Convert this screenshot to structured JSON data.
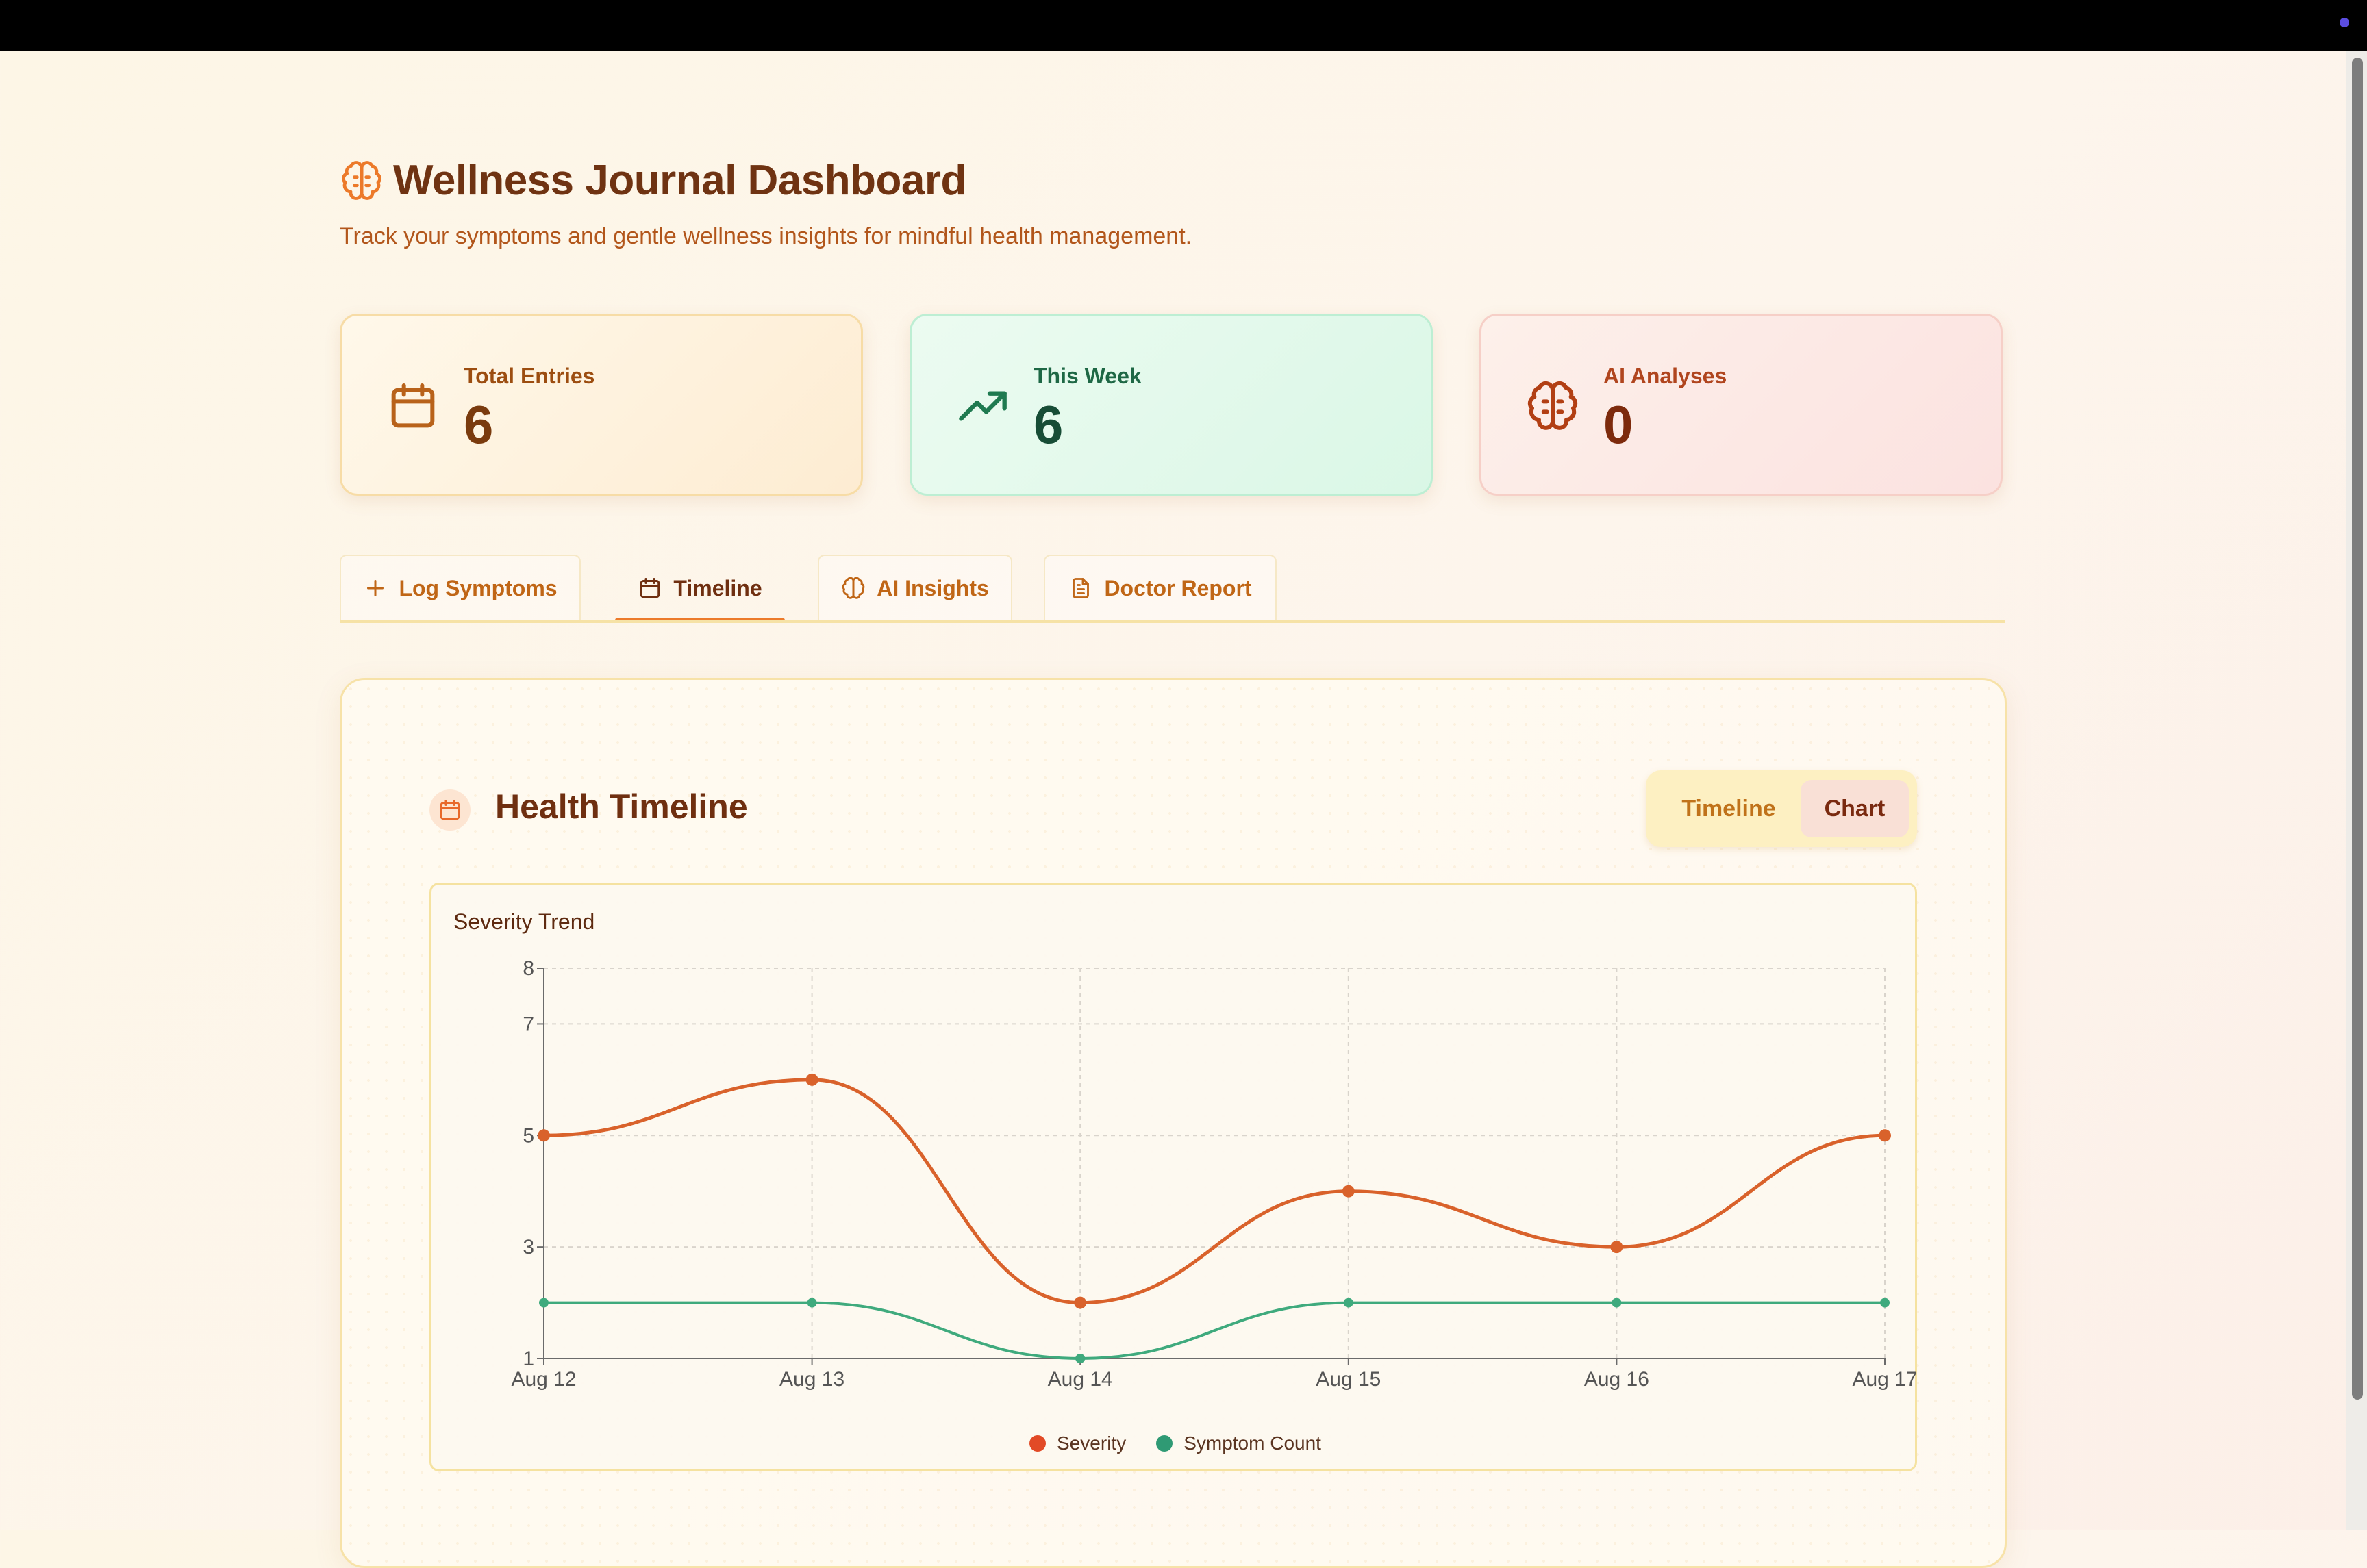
{
  "header": {
    "title": "Wellness Journal Dashboard",
    "subtitle": "Track your symptoms and gentle wellness insights for mindful health management."
  },
  "stats": [
    {
      "label": "Total Entries",
      "value": "6",
      "icon": "calendar-icon"
    },
    {
      "label": "This Week",
      "value": "6",
      "icon": "trending-up-icon"
    },
    {
      "label": "AI Analyses",
      "value": "0",
      "icon": "brain-icon"
    }
  ],
  "tabs": [
    {
      "label": "Log Symptoms",
      "icon": "plus-icon",
      "active": false
    },
    {
      "label": "Timeline",
      "icon": "calendar-icon",
      "active": true
    },
    {
      "label": "AI Insights",
      "icon": "brain-icon",
      "active": false
    },
    {
      "label": "Doctor Report",
      "icon": "document-icon",
      "active": false
    }
  ],
  "panel": {
    "title": "Health Timeline",
    "toggle": {
      "options": [
        "Timeline",
        "Chart"
      ],
      "selected": "Chart"
    }
  },
  "colors": {
    "severity": "#d9622b",
    "symptom_count": "#3faa7d",
    "title": "#6f3312",
    "accent": "#ec7a2a"
  },
  "chart_data": {
    "type": "line",
    "title": "Severity Trend",
    "categories": [
      "Aug 12",
      "Aug 13",
      "Aug 14",
      "Aug 15",
      "Aug 16",
      "Aug 17"
    ],
    "series": [
      {
        "name": "Severity",
        "values": [
          5,
          6,
          2,
          4,
          3,
          5
        ],
        "color": "#d9622b"
      },
      {
        "name": "Symptom Count",
        "values": [
          2,
          2,
          1,
          2,
          2,
          2
        ],
        "color": "#3faa7d"
      }
    ],
    "yticks": [
      1,
      3,
      5,
      7,
      8
    ],
    "ylim": [
      1,
      8
    ],
    "grid": true,
    "legend": "bottom-center"
  }
}
